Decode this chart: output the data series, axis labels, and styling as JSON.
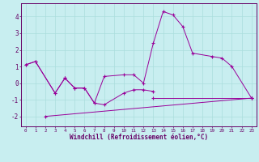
{
  "background_color": "#c8eef0",
  "grid_color": "#aadddd",
  "line_color": "#990099",
  "xlabel": "Windchill (Refroidissement éolien,°C)",
  "xlim": [
    -0.5,
    23.5
  ],
  "ylim": [
    -2.6,
    4.8
  ],
  "yticks": [
    -2,
    -1,
    0,
    1,
    2,
    3,
    4
  ],
  "xticks": [
    0,
    1,
    2,
    3,
    4,
    5,
    6,
    7,
    8,
    9,
    10,
    11,
    12,
    13,
    14,
    15,
    16,
    17,
    18,
    19,
    20,
    21,
    22,
    23
  ],
  "line1": {
    "x": [
      0,
      1,
      3,
      4,
      5,
      6,
      7,
      8,
      10,
      11,
      12,
      13,
      14,
      15,
      16,
      17,
      19,
      20,
      21,
      23
    ],
    "y": [
      1.1,
      1.3,
      -0.6,
      0.3,
      -0.3,
      -0.3,
      -1.2,
      0.4,
      0.5,
      0.5,
      0.0,
      2.4,
      4.3,
      4.1,
      3.4,
      1.8,
      1.6,
      1.5,
      1.0,
      -0.9
    ]
  },
  "line2": {
    "x": [
      0,
      1,
      3,
      4,
      5,
      6,
      7,
      8,
      10,
      11,
      12,
      13
    ],
    "y": [
      1.1,
      1.3,
      -0.6,
      0.3,
      -0.3,
      -0.3,
      -1.2,
      -1.3,
      -0.6,
      -0.4,
      -0.4,
      -0.5
    ]
  },
  "line3": {
    "x": [
      2,
      23
    ],
    "y": [
      -2.0,
      -0.9
    ]
  },
  "line4": {
    "x": [
      13,
      23
    ],
    "y": [
      -0.9,
      -0.9
    ]
  },
  "figsize": [
    3.2,
    2.0
  ],
  "dpi": 100
}
